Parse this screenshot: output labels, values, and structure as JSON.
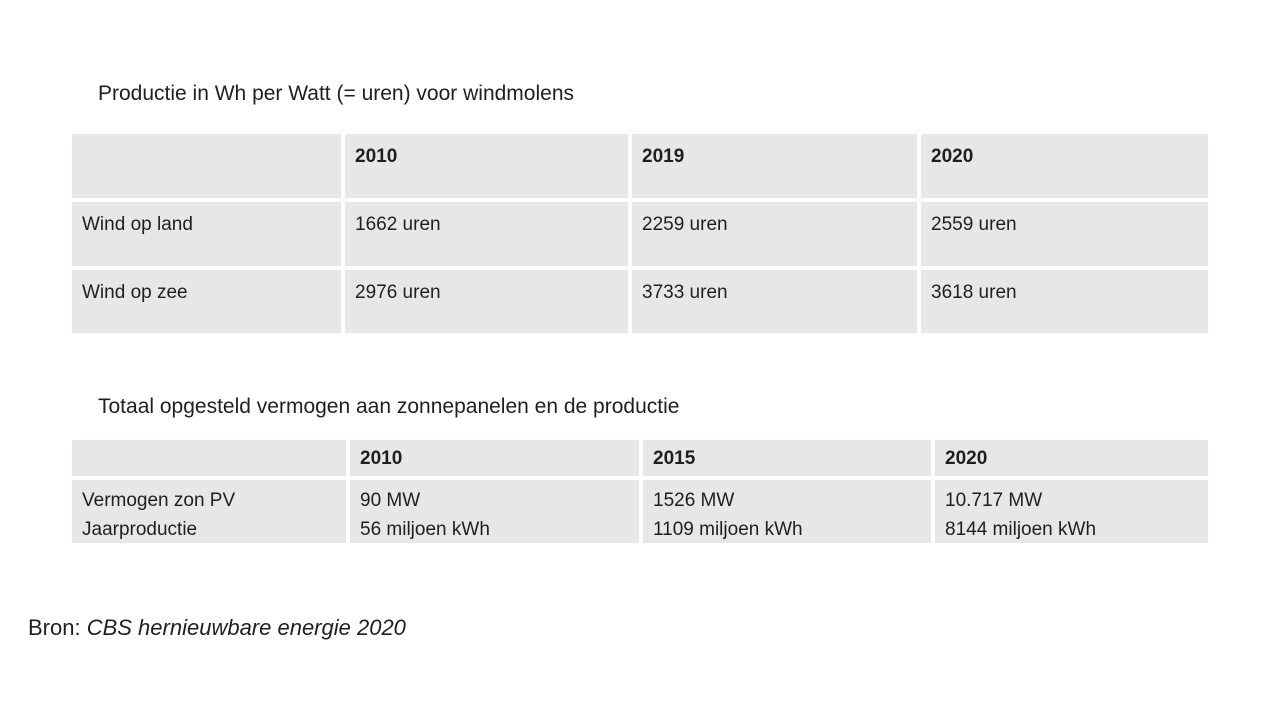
{
  "page": {
    "background_color": "#ffffff",
    "text_color": "#1f1f1f",
    "table_cell_color": "#e8e6e6"
  },
  "wind_table": {
    "title": "Productie in Wh per Watt (= uren) voor windmolens",
    "headers": [
      "",
      "2010",
      "2019",
      "2020"
    ],
    "rows": [
      {
        "label": "Wind op land",
        "values": [
          "1662 uren",
          "2259 uren",
          "2559 uren"
        ]
      },
      {
        "label": "Wind op zee",
        "values": [
          "2976 uren",
          "3733 uren",
          "3618 uren"
        ]
      }
    ]
  },
  "solar_table": {
    "title": "Totaal opgesteld vermogen aan zonnepanelen en de productie",
    "headers": [
      "",
      "2010",
      "2015",
      "2020"
    ],
    "rows": [
      {
        "label_line1": "Vermogen zon PV",
        "label_line2": "Jaarproductie",
        "values": [
          {
            "line1": "90 MW",
            "line2": "56 miljoen kWh"
          },
          {
            "line1": "1526 MW",
            "line2": "1109 miljoen kWh"
          },
          {
            "line1": "10.717 MW",
            "line2": "8144 miljoen kWh"
          }
        ]
      }
    ]
  },
  "source": {
    "prefix": "Bron: ",
    "reference": "CBS hernieuwbare energie 2020"
  }
}
